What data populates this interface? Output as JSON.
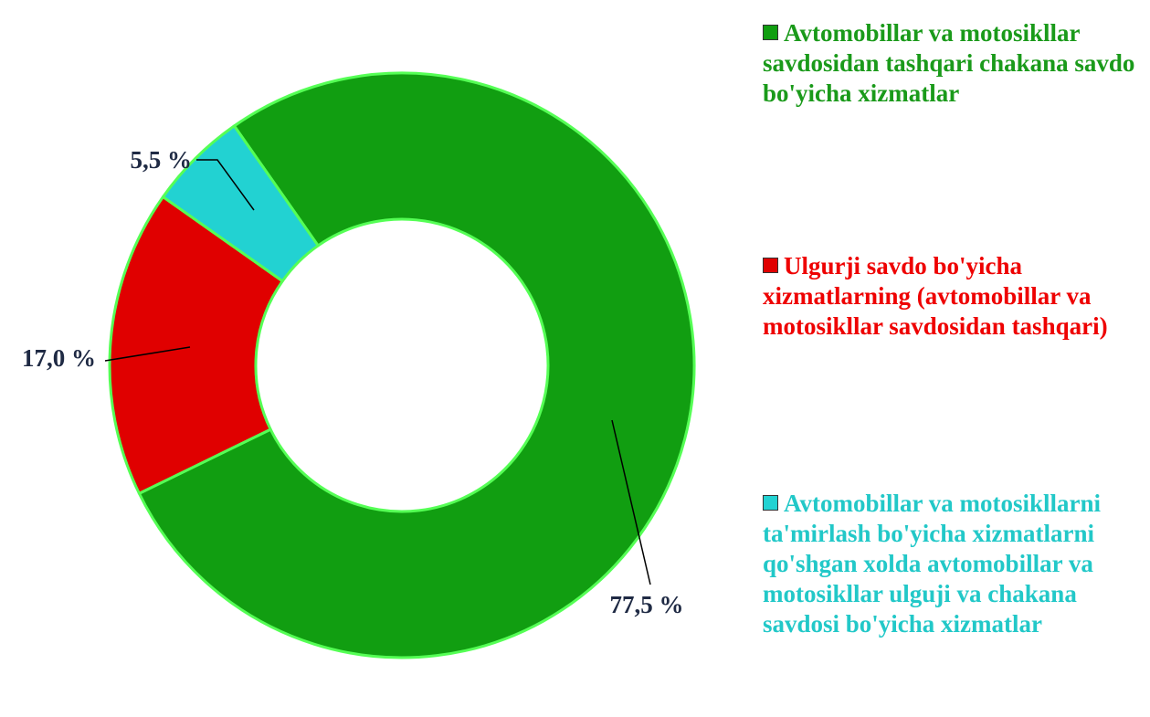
{
  "chart_data": {
    "type": "pie",
    "categories": [
      "Avtomobillar va motosikllar savdosidan tashqari chakana savdo bo'yicha xizmatlar",
      "Ulgurji savdo bo'yicha xizmatlarning (avtomobillar va motosikllar savdosidan tashqari)",
      "Avtomobillar va motosikllarni ta'mirlash bo'yicha xizmatlarni qo'shgan xolda avtomobillar va motosikllar ulguji va chakana savdosi bo'yicha xizmatlar"
    ],
    "values": [
      77.5,
      17.0,
      5.5
    ],
    "value_labels": [
      "77,5 %",
      "17,0 %",
      "5,5 %"
    ],
    "colors": [
      "#119e11",
      "#e00000",
      "#22d2d2"
    ],
    "text_colors": [
      "#1a9a1a",
      "#ee0000",
      "#22c8c8"
    ]
  }
}
